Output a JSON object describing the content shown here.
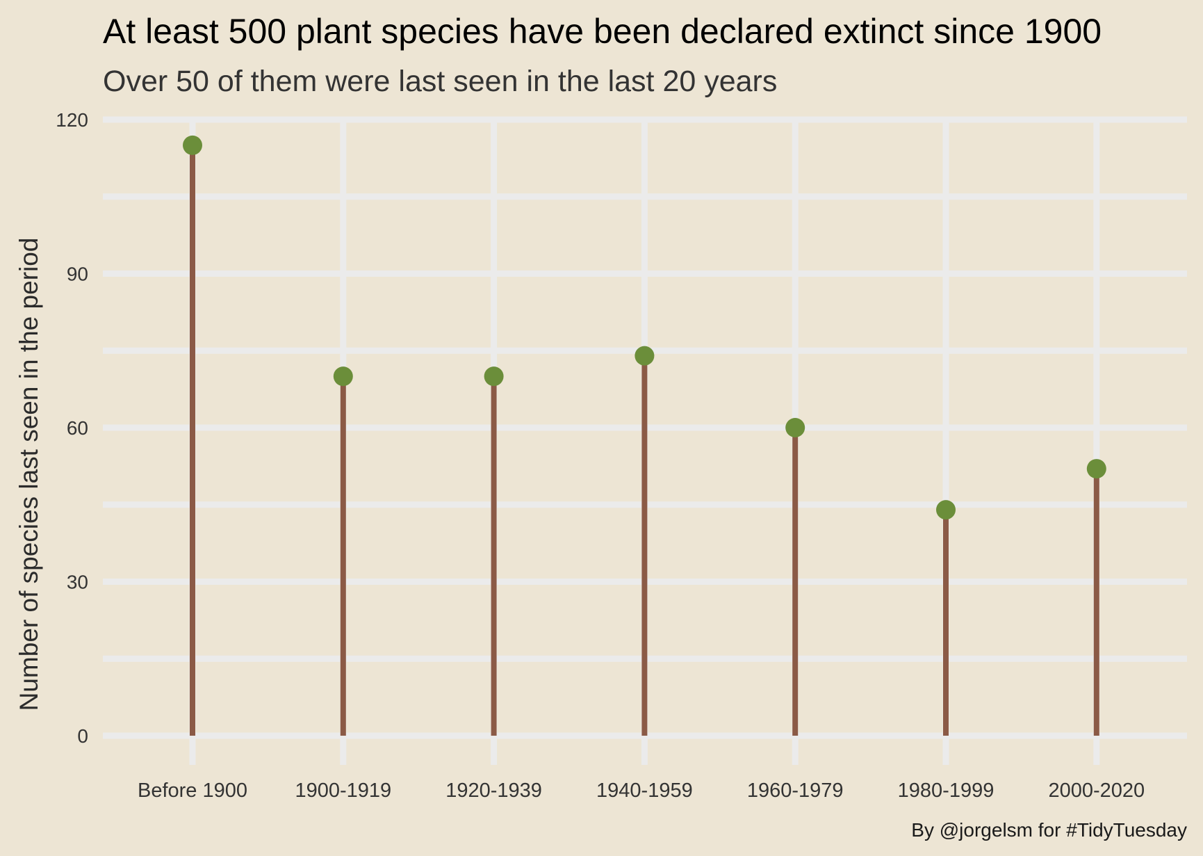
{
  "chart_data": {
    "type": "lollipop",
    "title": "At least 500 plant species have been declared extinct since 1900",
    "subtitle": "Over 50 of them were last seen in the last 20 years",
    "xlabel": "",
    "ylabel": "Number of species last seen in the period",
    "caption": "By @jorgelsm for #TidyTuesday",
    "categories": [
      "Before 1900",
      "1900-1919",
      "1920-1939",
      "1940-1959",
      "1960-1979",
      "1980-1999",
      "2000-2020"
    ],
    "values": [
      115,
      70,
      70,
      74,
      60,
      44,
      52
    ],
    "ylim": [
      0,
      120
    ],
    "yticks": [
      0,
      30,
      60,
      90,
      120
    ],
    "grid": true,
    "legend": "none",
    "colors": {
      "background": "#EDE5D4",
      "grid": "#EBEBEB",
      "stem": "#8B5A46",
      "point": "#6B8E3A"
    }
  }
}
